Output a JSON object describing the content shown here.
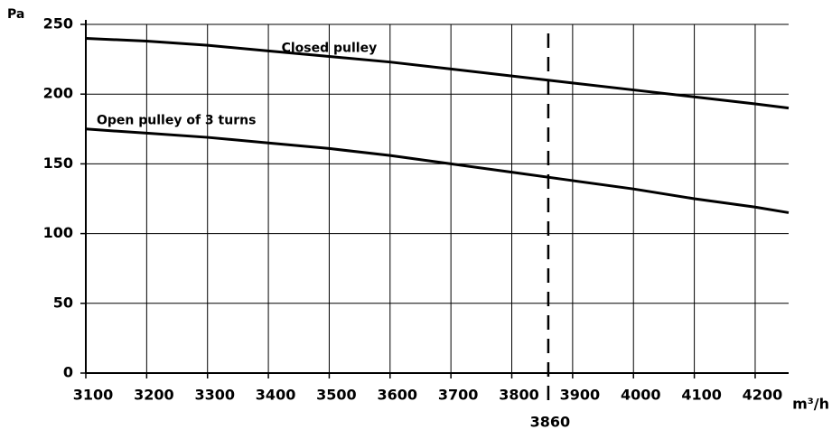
{
  "chart_data": {
    "type": "line",
    "ylabel": "Pa",
    "xlabel": "m³/h",
    "x": [
      3100,
      3200,
      3300,
      3400,
      3500,
      3600,
      3700,
      3800,
      3900,
      4000,
      4100,
      4200,
      4255
    ],
    "series": [
      {
        "name": "Closed pulley",
        "color": "#000000",
        "values": [
          240,
          238,
          235,
          231,
          227,
          223,
          218,
          213,
          208,
          203,
          198,
          193,
          190
        ]
      },
      {
        "name": "Open pulley of 3 turns",
        "color": "#000000",
        "values": [
          175,
          172,
          169,
          165,
          161,
          156,
          150,
          144,
          138,
          132,
          125,
          119,
          115
        ]
      }
    ],
    "xlim": [
      3100,
      4255
    ],
    "ylim": [
      0,
      250
    ],
    "xticks": [
      3100,
      3200,
      3300,
      3400,
      3500,
      3600,
      3700,
      3800,
      3900,
      4000,
      4100,
      4200
    ],
    "yticks": [
      0,
      50,
      100,
      150,
      200,
      250
    ],
    "grid": true,
    "marker_line": 3860
  }
}
